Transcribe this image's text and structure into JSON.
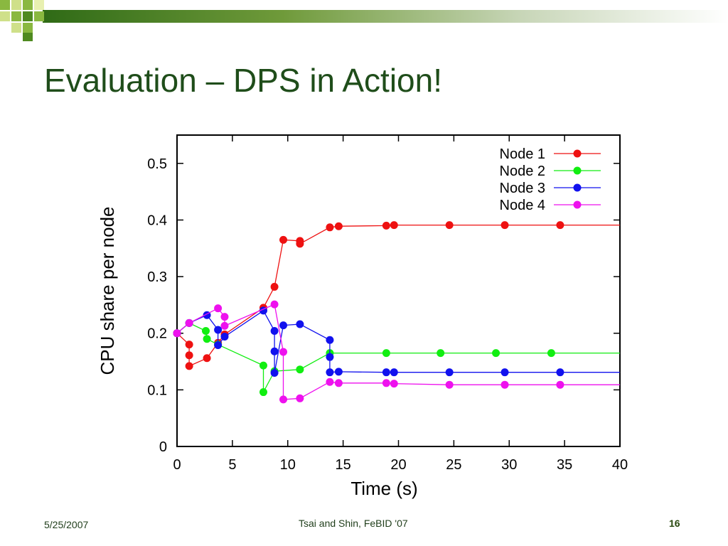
{
  "slide": {
    "title": "Evaluation – DPS in Action!",
    "footer_date": "5/25/2007",
    "footer_credit": "Tsai and Shin, FeBID '07",
    "page_number": "16",
    "accent_color": "#1f4d1a"
  },
  "chart_data": {
    "type": "line",
    "title": "",
    "xlabel": "Time (s)",
    "ylabel": "CPU share per node",
    "xlim": [
      0,
      40
    ],
    "ylim": [
      0,
      0.55
    ],
    "xticks": [
      0,
      5,
      10,
      15,
      20,
      25,
      30,
      35,
      40
    ],
    "xtick_labels": [
      "0",
      "5",
      "10",
      "15",
      "20",
      "25",
      "30",
      "35",
      "40"
    ],
    "yticks": [
      0,
      0.1,
      0.2,
      0.3,
      0.4,
      0.5
    ],
    "ytick_labels": [
      "0",
      "0.1",
      "0.2",
      "0.3",
      "0.4",
      "0.5"
    ],
    "grid": false,
    "legend_position": "top-right",
    "series": [
      {
        "name": "Node 1",
        "color": "#ee1111",
        "x": [
          0,
          1.1,
          1.1,
          1.1,
          2.7,
          3.7,
          4.3,
          7.8,
          8.8,
          9.6,
          11.1,
          11.1,
          13.8,
          14.6,
          18.9,
          19.6,
          24.6,
          29.6,
          34.6,
          40
        ],
        "y": [
          0.2,
          0.18,
          0.161,
          0.142,
          0.156,
          0.183,
          0.198,
          0.245,
          0.282,
          0.365,
          0.363,
          0.358,
          0.387,
          0.389,
          0.39,
          0.391,
          0.391,
          0.391,
          0.391,
          0.391
        ],
        "markers": [
          true,
          true,
          true,
          true,
          true,
          true,
          true,
          true,
          true,
          true,
          true,
          true,
          true,
          true,
          true,
          true,
          true,
          true,
          true,
          false
        ]
      },
      {
        "name": "Node 2",
        "color": "#11ee11",
        "x": [
          0,
          1.1,
          2.6,
          2.7,
          3.7,
          7.8,
          7.8,
          8.8,
          11.1,
          13.8,
          18.9,
          23.8,
          28.8,
          33.8,
          40
        ],
        "y": [
          0.2,
          0.218,
          0.204,
          0.19,
          0.18,
          0.143,
          0.096,
          0.133,
          0.136,
          0.165,
          0.165,
          0.165,
          0.165,
          0.165,
          0.165
        ],
        "markers": [
          true,
          true,
          true,
          true,
          true,
          true,
          true,
          true,
          true,
          true,
          true,
          true,
          true,
          true,
          false
        ]
      },
      {
        "name": "Node 3",
        "color": "#1111ee",
        "x": [
          0,
          1.1,
          2.7,
          3.7,
          3.7,
          4.3,
          7.8,
          8.8,
          8.8,
          8.8,
          9.6,
          11.1,
          13.8,
          13.8,
          13.8,
          14.6,
          18.9,
          19.6,
          24.6,
          29.6,
          34.6,
          40
        ],
        "y": [
          0.2,
          0.218,
          0.232,
          0.206,
          0.179,
          0.194,
          0.24,
          0.204,
          0.168,
          0.13,
          0.214,
          0.216,
          0.188,
          0.158,
          0.131,
          0.132,
          0.131,
          0.131,
          0.131,
          0.131,
          0.131,
          0.131
        ],
        "markers": [
          true,
          true,
          true,
          true,
          true,
          true,
          true,
          true,
          true,
          true,
          true,
          true,
          true,
          true,
          true,
          true,
          true,
          true,
          true,
          true,
          true,
          false
        ]
      },
      {
        "name": "Node 4",
        "color": "#ee11ee",
        "x": [
          0,
          1.1,
          3.7,
          4.3,
          4.3,
          8.8,
          9.6,
          9.6,
          11.1,
          13.8,
          14.6,
          18.9,
          19.6,
          24.6,
          29.6,
          34.6,
          40
        ],
        "y": [
          0.2,
          0.218,
          0.244,
          0.229,
          0.213,
          0.251,
          0.167,
          0.083,
          0.085,
          0.114,
          0.112,
          0.112,
          0.111,
          0.109,
          0.109,
          0.109,
          0.109
        ],
        "markers": [
          true,
          true,
          true,
          true,
          true,
          true,
          true,
          true,
          true,
          true,
          true,
          true,
          true,
          true,
          true,
          true,
          false
        ]
      }
    ]
  }
}
